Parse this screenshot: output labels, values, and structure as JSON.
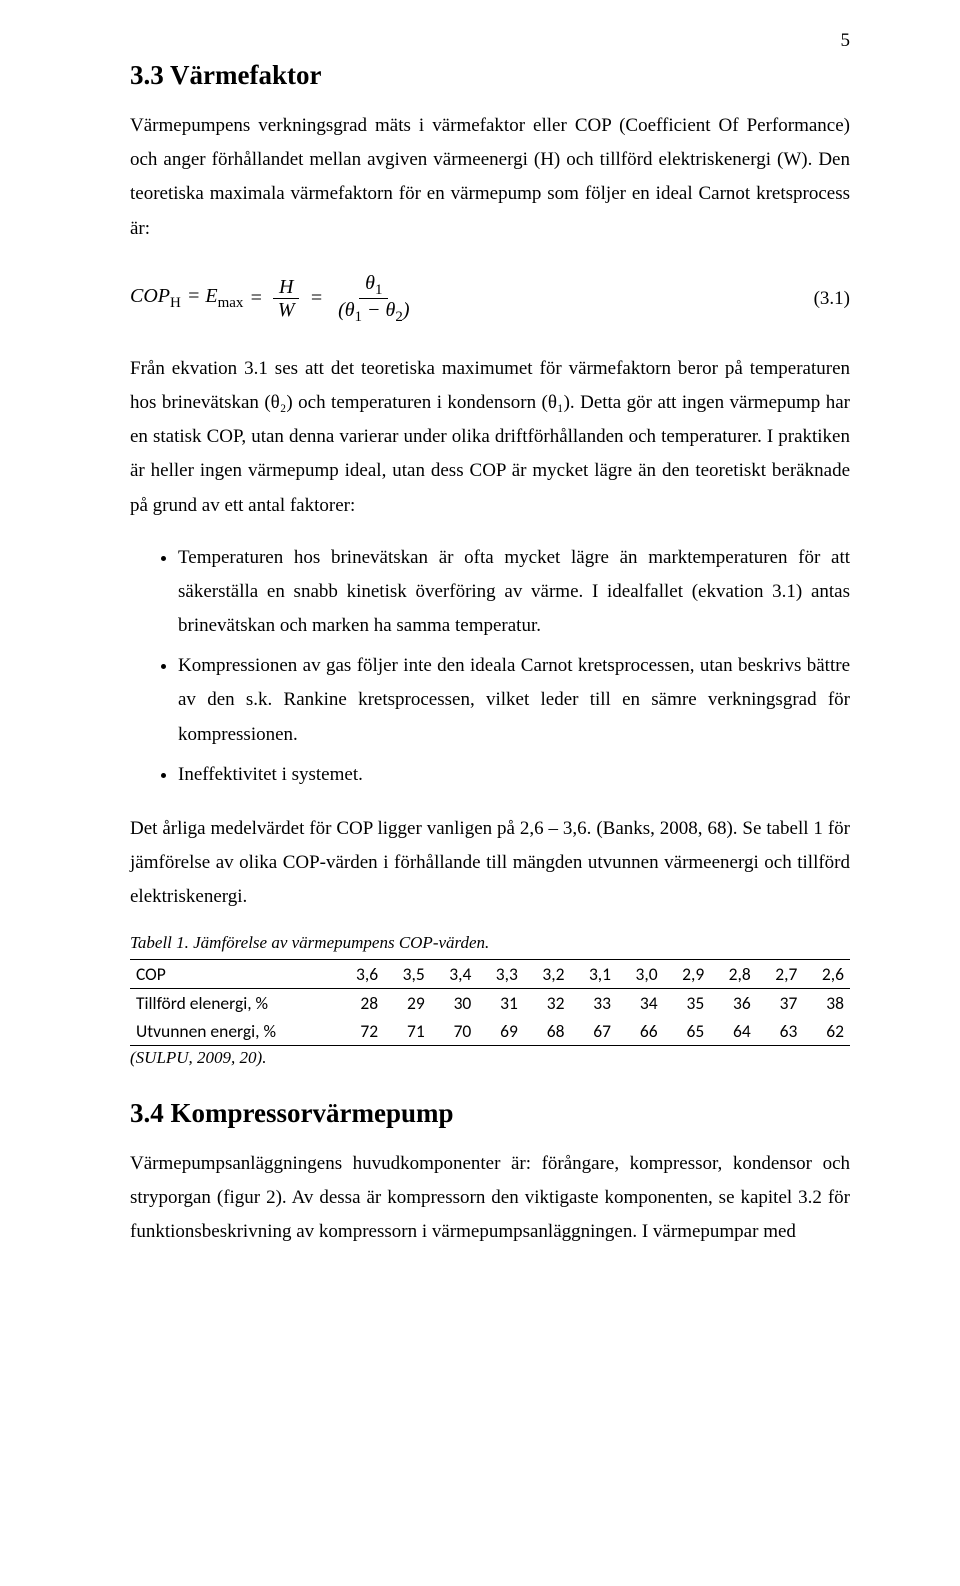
{
  "page_number": "5",
  "s33": {
    "heading": "3.3  Värmefaktor",
    "p1": "Värmepumpens verkningsgrad mäts i värmefaktor eller COP (Coefficient Of Performance) och anger förhållandet mellan avgiven värmeenergi (H) och tillförd elektriskenergi (W). Den teoretiska maximala värmefaktorn för en värmepump som följer en ideal Carnot kretsprocess är:",
    "eq": {
      "lhs1": "COP",
      "lhs1_sub": "H",
      "eq1": "= E",
      "eq1_sub": "max",
      "eq2": "=",
      "frac1_num": "H",
      "frac1_den": "W",
      "eq3": "=",
      "frac2_num_a": "θ",
      "frac2_num_a_sub": "1",
      "frac2_den_a": "(θ",
      "frac2_den_a_sub": "1",
      "frac2_den_mid": " − θ",
      "frac2_den_b_sub": "2",
      "frac2_den_close": ")",
      "number": "(3.1)"
    },
    "p2": "Från ekvation 3.1 ses att det teoretiska maximumet för värmefaktorn beror på temperaturen hos brinevätskan (θ₂) och temperaturen i kondensorn (θ₁). Detta gör att ingen värmepump har en statisk COP, utan denna varierar under olika driftförhållanden och temperaturer. I praktiken är heller ingen värmepump ideal, utan dess COP är mycket lägre än den teoretiskt beräknade på grund av ett antal faktorer:",
    "bullets": [
      "Temperaturen hos brinevätskan är ofta mycket lägre än marktemperaturen för att säkerställa en snabb kinetisk överföring av värme. I idealfallet (ekvation 3.1) antas brinevätskan och marken ha samma temperatur.",
      "Kompressionen av gas följer inte den ideala Carnot kretsprocessen, utan beskrivs bättre av den s.k. Rankine kretsprocessen, vilket leder till en sämre verkningsgrad för kompressionen.",
      "Ineffektivitet i systemet."
    ],
    "p3": "Det årliga medelvärdet för COP ligger vanligen på 2,6 – 3,6. (Banks, 2008, 68). Se tabell 1 för jämförelse av olika COP-värden i förhållande till mängden utvunnen värmeenergi och tillförd elektriskenergi.",
    "table": {
      "caption": "Tabell 1. Jämförelse av värmepumpens COP-värden.",
      "columns": [
        "COP",
        "3,6",
        "3,5",
        "3,4",
        "3,3",
        "3,2",
        "3,1",
        "3,0",
        "2,9",
        "2,8",
        "2,7",
        "2,6"
      ],
      "rows": [
        [
          "Tillförd elenergi, %",
          "28",
          "29",
          "30",
          "31",
          "32",
          "33",
          "34",
          "35",
          "36",
          "37",
          "38"
        ],
        [
          "Utvunnen energi, %",
          "72",
          "71",
          "70",
          "69",
          "68",
          "67",
          "66",
          "65",
          "64",
          "63",
          "62"
        ]
      ],
      "source": "(SULPU, 2009, 20)."
    }
  },
  "s34": {
    "heading": "3.4  Kompressorvärmepump",
    "p1": "Värmepumpsanläggningens huvudkomponenter är: förångare, kompressor, kondensor och stryporgan (figur 2). Av dessa är kompressorn den viktigaste komponenten, se kapitel 3.2 för funktionsbeskrivning av kompressorn i värmepumpsanläggningen. I värmepumpar med"
  }
}
